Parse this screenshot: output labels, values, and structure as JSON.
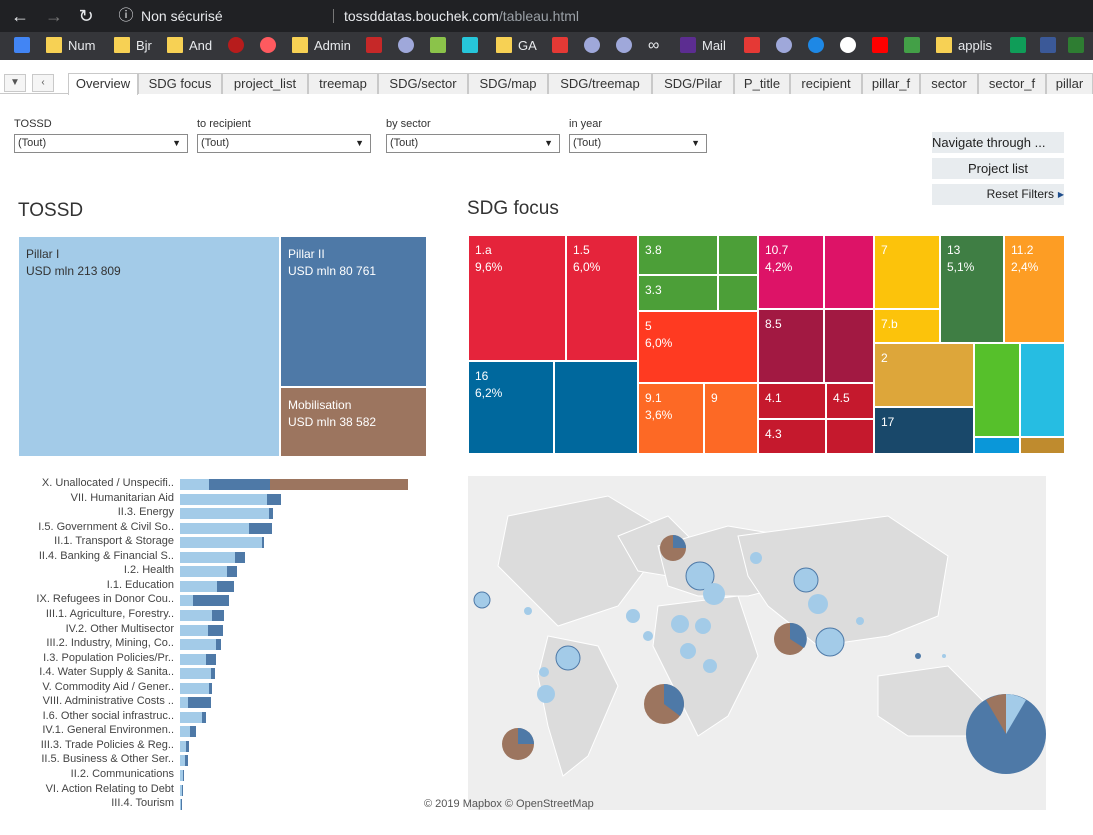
{
  "browser": {
    "security_label": "Non sécurisé",
    "url_host": "tossddatas.bouchek.com",
    "url_path": "/tableau.html",
    "bookmarks": [
      "Num",
      "Bjr",
      "And",
      "Admin",
      "GA",
      "Mail",
      "applis"
    ]
  },
  "tabs": [
    "Overview",
    "SDG focus",
    "project_list",
    "treemap",
    "SDG/sector",
    "SDG/map",
    "SDG/treemap",
    "SDG/Pilar",
    "P_title",
    "recipient",
    "pillar_f",
    "sector",
    "sector_f",
    "pillar"
  ],
  "active_tab": "Overview",
  "filters": [
    {
      "label": "TOSSD",
      "value": "(Tout)"
    },
    {
      "label": "to recipient",
      "value": "(Tout)"
    },
    {
      "label": "by sector",
      "value": "(Tout)"
    },
    {
      "label": "in year",
      "value": "(Tout)"
    }
  ],
  "nav_buttons": {
    "navigate": "Navigate through ...",
    "project_list": "Project list",
    "reset": "Reset Filters"
  },
  "tossd": {
    "title": "TOSSD",
    "cells": [
      {
        "name": "Pillar I",
        "value": "USD mln 213 809",
        "color": "#a3cbe8"
      },
      {
        "name": "Pillar II",
        "value": "USD mln 80 761",
        "color": "#4e79a7"
      },
      {
        "name": "Mobilisation",
        "value": "USD mln 38 582",
        "color": "#9c755f"
      }
    ]
  },
  "sdg": {
    "title": "SDG focus",
    "labels": {
      "a1": "1.a",
      "a1v": "9,6%",
      "a2": "1.5",
      "a2v": "6,0%",
      "b1": "3.8",
      "b2": "3.3",
      "c1": "10.7",
      "c1v": "4,2%",
      "d1": "7",
      "d2": "7.b",
      "e1": "13",
      "e1v": "5,1%",
      "f1": "11.2",
      "f1v": "2,4%",
      "g1": "5",
      "g1v": "6,0%",
      "h1": "8.5",
      "i1": "16",
      "i1v": "6,2%",
      "j1": "9.1",
      "j1v": "3,6%",
      "j2": "9",
      "k1": "4.1",
      "k2": "4.5",
      "k3": "4.3",
      "l1": "2",
      "m1": "17"
    }
  },
  "sectors": [
    "X. Unallocated / Unspecifi..",
    "VII. Humanitarian Aid",
    "II.3. Energy",
    "I.5. Government & Civil So..",
    "II.1. Transport & Storage",
    "II.4. Banking & Financial S..",
    "I.2. Health",
    "I.1. Education",
    "IX. Refugees in Donor Cou..",
    "III.1. Agriculture, Forestry..",
    "IV.2. Other Multisector",
    "III.2. Industry, Mining, Co..",
    "I.3. Population Policies/Pr..",
    "I.4. Water Supply & Sanita..",
    "V. Commodity Aid / Gener..",
    "VIII. Administrative Costs ..",
    "I.6. Other social infrastruc..",
    "IV.1. General Environmen..",
    "III.3. Trade Policies & Reg..",
    "II.5. Business & Other Ser..",
    "II.2. Communications",
    "VI. Action Relating to Debt",
    "III.4. Tourism"
  ],
  "map_credit": "© 2019 Mapbox  © OpenStreetMap",
  "icons": {
    "back": "arrow-left",
    "forward": "arrow-right",
    "reload": "reload",
    "info": "info",
    "dropdown": "caret-down"
  }
}
